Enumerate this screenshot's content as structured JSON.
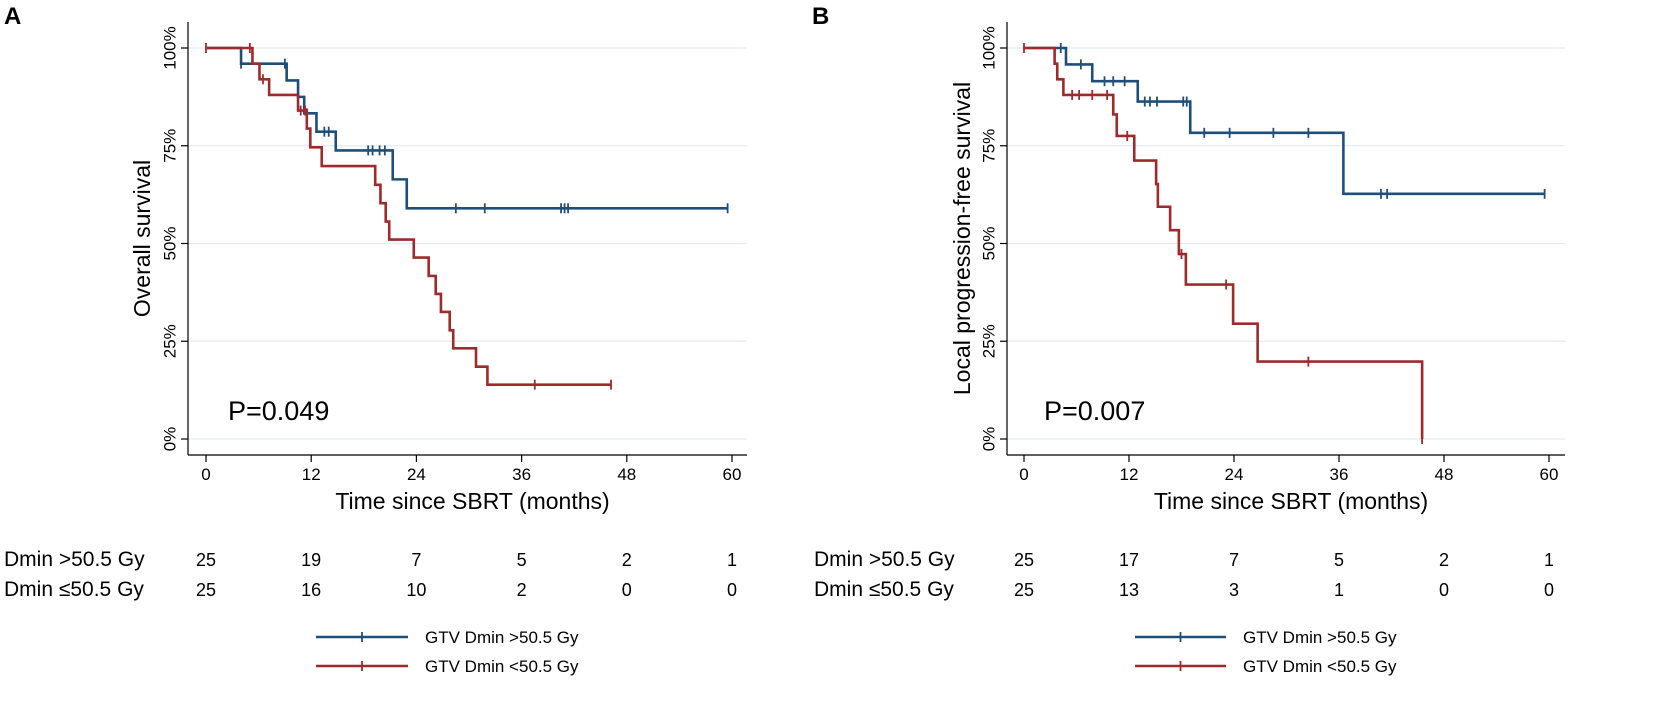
{
  "colors": {
    "blue": "#1f4e79",
    "red": "#9e2a2b",
    "grid": "#e3ecef",
    "axis": "#000000"
  },
  "chart_data": [
    {
      "panel_label": "A",
      "type": "line",
      "subtype": "kaplan-meier",
      "xlabel": "Time since SBRT (months)",
      "ylabel": "Overall survival",
      "xlim": [
        0,
        60
      ],
      "ylim": [
        0,
        1
      ],
      "xticks": [
        "0",
        "12",
        "24",
        "36",
        "48",
        "60"
      ],
      "yticks": [
        "0%",
        "25%",
        "50%",
        "75%",
        "100%"
      ],
      "grid": true,
      "annotation": "P=0.049",
      "series": [
        {
          "name": "GTV Dmin >50.5 Gy",
          "color": "#1f4e79",
          "steps": [
            [
              0,
              1.0
            ],
            [
              4,
              0.96
            ],
            [
              9.2,
              0.917
            ],
            [
              10.5,
              0.875
            ],
            [
              11.2,
              0.833
            ],
            [
              12.6,
              0.786
            ],
            [
              14.8,
              0.738
            ],
            [
              21.3,
              0.664
            ],
            [
              22.9,
              0.59
            ],
            [
              59.5,
              0.59
            ]
          ],
          "censors": [
            [
              4,
              0.96
            ],
            [
              9,
              0.96
            ],
            [
              11.5,
              0.833
            ],
            [
              13.5,
              0.786
            ],
            [
              14,
              0.786
            ],
            [
              18.5,
              0.738
            ],
            [
              19,
              0.738
            ],
            [
              19.8,
              0.738
            ],
            [
              20.4,
              0.738
            ],
            [
              28.5,
              0.59
            ],
            [
              31.8,
              0.59
            ],
            [
              40.5,
              0.59
            ],
            [
              40.9,
              0.59
            ],
            [
              41.3,
              0.59
            ],
            [
              59.5,
              0.59
            ]
          ]
        },
        {
          "name": "GTV Dmin <50.5 Gy",
          "color": "#9e2a2b",
          "steps": [
            [
              0,
              1.0
            ],
            [
              5.3,
              0.96
            ],
            [
              6.1,
              0.92
            ],
            [
              7.2,
              0.88
            ],
            [
              10.5,
              0.84
            ],
            [
              11.5,
              0.794
            ],
            [
              11.9,
              0.746
            ],
            [
              13.2,
              0.698
            ],
            [
              19.3,
              0.65
            ],
            [
              19.9,
              0.603
            ],
            [
              20.5,
              0.556
            ],
            [
              20.9,
              0.51
            ],
            [
              23.7,
              0.464
            ],
            [
              25.4,
              0.417
            ],
            [
              26.2,
              0.371
            ],
            [
              26.8,
              0.325
            ],
            [
              27.8,
              0.278
            ],
            [
              28.2,
              0.232
            ],
            [
              30.8,
              0.185
            ],
            [
              32.1,
              0.139
            ],
            [
              46.2,
              0.139
            ]
          ],
          "censors": [
            [
              0,
              1.0
            ],
            [
              5,
              1.0
            ],
            [
              6.5,
              0.92
            ],
            [
              10.8,
              0.84
            ],
            [
              11.3,
              0.84
            ],
            [
              37.5,
              0.139
            ],
            [
              46.2,
              0.139
            ]
          ]
        }
      ],
      "risk_table": {
        "rows": [
          {
            "label": "Dmin >50.5 Gy",
            "values": [
              "25",
              "19",
              "7",
              "5",
              "2",
              "1"
            ]
          },
          {
            "label": "Dmin ≤50.5 Gy",
            "values": [
              "25",
              "16",
              "10",
              "2",
              "0",
              "0"
            ]
          }
        ]
      },
      "legend": [
        "GTV Dmin >50.5 Gy",
        "GTV Dmin <50.5 Gy"
      ]
    },
    {
      "panel_label": "B",
      "type": "line",
      "subtype": "kaplan-meier",
      "xlabel": "Time since SBRT (months)",
      "ylabel": "Local progression-free survival",
      "xlim": [
        0,
        60
      ],
      "ylim": [
        0,
        1
      ],
      "xticks": [
        "0",
        "12",
        "24",
        "36",
        "48",
        "60"
      ],
      "yticks": [
        "0%",
        "25%",
        "50%",
        "75%",
        "100%"
      ],
      "grid": true,
      "annotation": "P=0.007",
      "series": [
        {
          "name": "GTV Dmin >50.5 Gy",
          "color": "#1f4e79",
          "steps": [
            [
              0,
              1.0
            ],
            [
              4.8,
              0.958
            ],
            [
              7.8,
              0.915
            ],
            [
              13,
              0.863
            ],
            [
              19,
              0.783
            ],
            [
              36.5,
              0.627
            ],
            [
              59.5,
              0.627
            ]
          ],
          "censors": [
            [
              4.2,
              1.0
            ],
            [
              6.5,
              0.958
            ],
            [
              9.2,
              0.915
            ],
            [
              10.2,
              0.915
            ],
            [
              11.5,
              0.915
            ],
            [
              13.8,
              0.863
            ],
            [
              14.4,
              0.863
            ],
            [
              15.2,
              0.863
            ],
            [
              18.2,
              0.863
            ],
            [
              18.6,
              0.863
            ],
            [
              20.6,
              0.783
            ],
            [
              23.5,
              0.783
            ],
            [
              28.5,
              0.783
            ],
            [
              32.5,
              0.783
            ],
            [
              40.8,
              0.627
            ],
            [
              41.5,
              0.627
            ],
            [
              59.5,
              0.627
            ]
          ]
        },
        {
          "name": "GTV Dmin <50.5 Gy",
          "color": "#9e2a2b",
          "steps": [
            [
              0,
              1.0
            ],
            [
              3.5,
              0.96
            ],
            [
              3.8,
              0.92
            ],
            [
              4.5,
              0.88
            ],
            [
              10.2,
              0.83
            ],
            [
              10.6,
              0.775
            ],
            [
              12.6,
              0.712
            ],
            [
              15.1,
              0.652
            ],
            [
              15.3,
              0.594
            ],
            [
              16.7,
              0.534
            ],
            [
              17.7,
              0.473
            ],
            [
              18.5,
              0.395
            ],
            [
              23.9,
              0.295
            ],
            [
              26.7,
              0.198
            ],
            [
              45.5,
              0.0
            ]
          ],
          "censors": [
            [
              0,
              1.0
            ],
            [
              5.5,
              0.88
            ],
            [
              6.3,
              0.88
            ],
            [
              7.8,
              0.88
            ],
            [
              9.5,
              0.88
            ],
            [
              11.8,
              0.775
            ],
            [
              18,
              0.473
            ],
            [
              23.1,
              0.395
            ],
            [
              32.5,
              0.198
            ],
            [
              45.5,
              0.0
            ]
          ]
        }
      ],
      "risk_table": {
        "rows": [
          {
            "label": "Dmin >50.5 Gy",
            "values": [
              "25",
              "17",
              "7",
              "5",
              "2",
              "1"
            ]
          },
          {
            "label": "Dmin ≤50.5 Gy",
            "values": [
              "25",
              "13",
              "3",
              "1",
              "0",
              "0"
            ]
          }
        ]
      },
      "legend": [
        "GTV Dmin >50.5 Gy",
        "GTV Dmin <50.5 Gy"
      ]
    }
  ]
}
